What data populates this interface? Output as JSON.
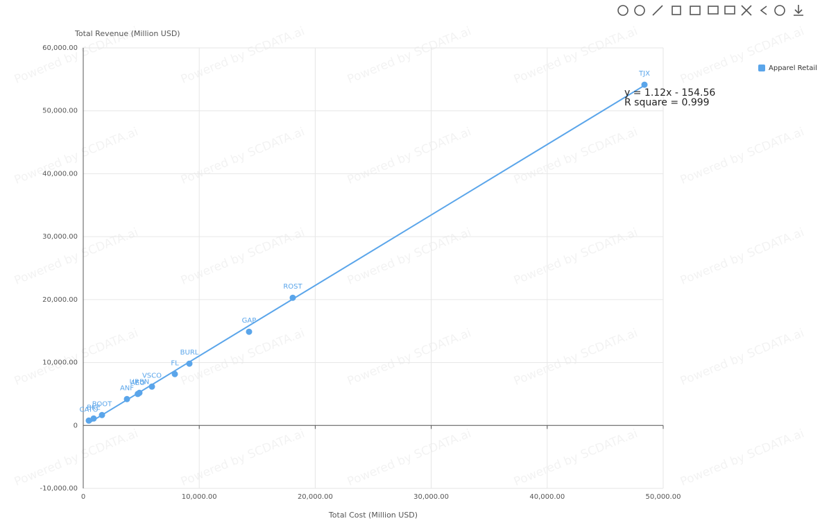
{
  "chart_data": {
    "type": "scatter",
    "x_label": "Total Cost (Million USD)",
    "y_label": "Total Revenue (Million USD)",
    "watermark": "Powered by SCDATA.ai",
    "xlim": [
      0,
      50000
    ],
    "xticks": [
      0,
      {
        "value": 10000,
        "label": "10,000.00"
      },
      {
        "value": 20000,
        "label": "20,000.00"
      },
      {
        "value": 30000,
        "label": "30,000.00"
      },
      {
        "value": 40000,
        "label": "40,000.00"
      },
      {
        "value": 50000,
        "label": "50,000.00"
      }
    ],
    "ylim": [
      -10000,
      60000
    ],
    "yticks": [
      {
        "value": -10000,
        "label": "-10,000.00"
      },
      0,
      {
        "value": 10000,
        "label": "10,000.00"
      },
      {
        "value": 20000,
        "label": "20,000.00"
      },
      {
        "value": 30000,
        "label": "30,000.00"
      },
      {
        "value": 40000,
        "label": "40,000.00"
      },
      {
        "value": 50000,
        "label": "50,000.00"
      },
      {
        "value": 60000,
        "label": "60,000.00"
      }
    ],
    "grid": true,
    "legend": "top-right",
    "series": [
      {
        "name": "Apparel Retail",
        "color": "#5aa5ea",
        "labels": [
          "TJX",
          "ROST",
          "GAP",
          "BURL",
          "FL",
          "VSCO",
          "URBN",
          "AEO",
          "ANF",
          "BOOT",
          "BKE",
          "CATO"
        ],
        "x": [
          48385,
          18062,
          14294,
          9151,
          7895,
          5921,
          4844,
          4700,
          3768,
          1615,
          897,
          478
        ],
        "values": [
          54150,
          20293,
          14889,
          9816,
          8161,
          6176,
          5184,
          5000,
          4191,
          1654,
          1103,
          772
        ]
      }
    ],
    "regression": {
      "slope": 1.12,
      "intercept": -154.56,
      "equation": "y = 1.12x - 154.56",
      "r_square": "R square = 0.999"
    }
  }
}
